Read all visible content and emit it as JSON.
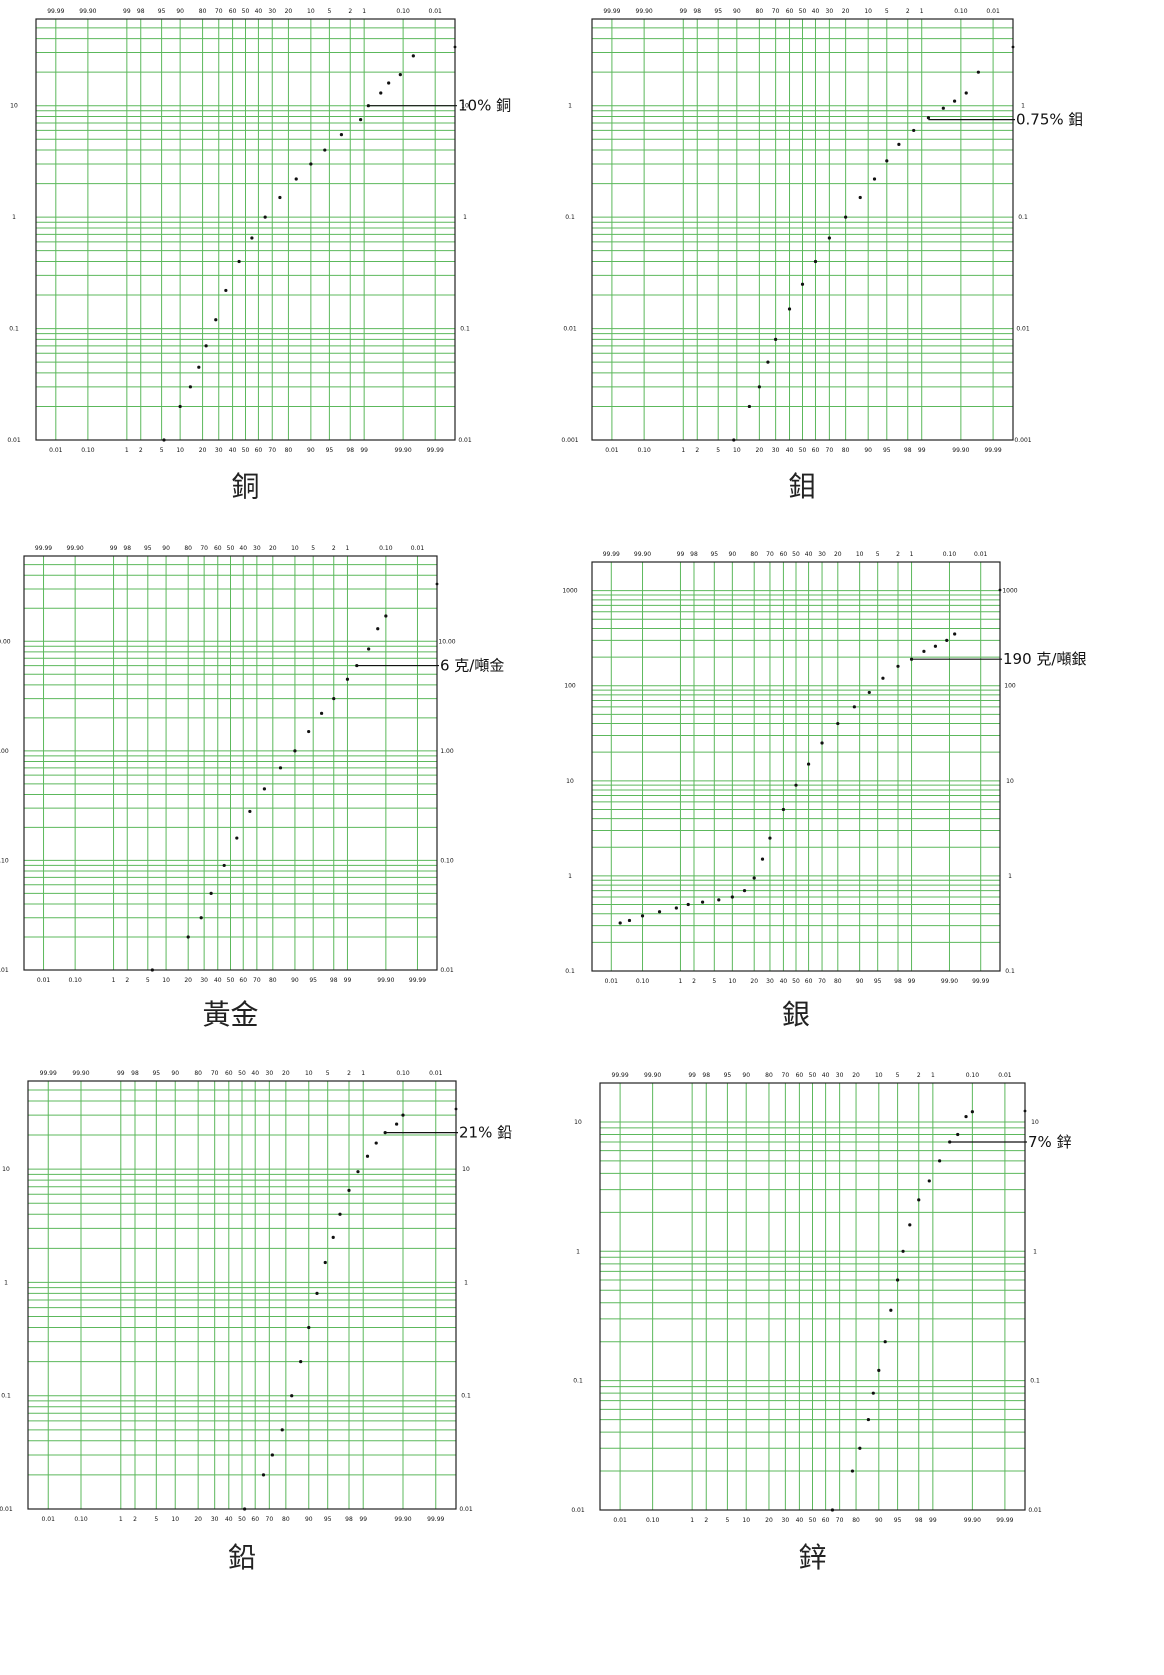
{
  "colors": {
    "grid": "#5cb85c",
    "frame": "#222222",
    "points": "#111111"
  },
  "prob_top_ticks": [
    "99.99",
    "99.90",
    "99",
    "98",
    "95",
    "90",
    "80",
    "70",
    "60",
    "50",
    "40",
    "30",
    "20",
    "10",
    "5",
    "2",
    "1",
    "0.10",
    "0.01"
  ],
  "prob_bottom_ticks": [
    "0.01",
    "0.10",
    "1",
    "2",
    "5",
    "10",
    "20",
    "30",
    "40",
    "50",
    "60",
    "70",
    "80",
    "90",
    "95",
    "98",
    "99",
    "99.90",
    "99.99"
  ],
  "chart_data": [
    {
      "type": "scatter",
      "title": "銅",
      "y_scale": "log",
      "ylim": [
        0.01,
        60
      ],
      "y_ticks": [
        "10",
        "1",
        "0.1",
        "0.01"
      ],
      "annotation": {
        "label": "10% 銅",
        "y": 10
      },
      "x": [
        5.5,
        10,
        14,
        18,
        22,
        28,
        35,
        45,
        55,
        65,
        75,
        84,
        90,
        94,
        97,
        98.8,
        99.2,
        99.6,
        99.75,
        99.88,
        99.95
      ],
      "y": [
        0.01,
        0.02,
        0.03,
        0.045,
        0.07,
        0.12,
        0.22,
        0.4,
        0.65,
        1.0,
        1.5,
        2.2,
        3.0,
        4.0,
        5.5,
        7.5,
        10,
        13,
        16,
        19,
        28
      ]
    },
    {
      "type": "scatter",
      "title": "鉬",
      "y_scale": "log",
      "ylim": [
        0.001,
        6
      ],
      "y_ticks": [
        "1",
        "0.1",
        "0.01",
        "0.001"
      ],
      "annotation": {
        "label": "0.75% 鉬",
        "y": 0.75
      },
      "x": [
        9,
        15,
        20,
        25,
        30,
        40,
        50,
        60,
        70,
        80,
        87,
        92,
        95,
        97,
        98.5,
        99.3,
        99.7,
        99.85,
        99.93,
        99.97
      ],
      "y": [
        0.001,
        0.002,
        0.003,
        0.005,
        0.008,
        0.015,
        0.025,
        0.04,
        0.065,
        0.1,
        0.15,
        0.22,
        0.32,
        0.45,
        0.6,
        0.78,
        0.95,
        1.1,
        1.3,
        2.0
      ]
    },
    {
      "type": "scatter",
      "title": "黃金",
      "y_scale": "log",
      "ylim": [
        0.01,
        60
      ],
      "y_ticks": [
        "10.00",
        "1.00",
        "0.10",
        "0.01"
      ],
      "annotation": {
        "label": "6 克/噸金",
        "y": 6
      },
      "x": [
        6,
        20,
        28,
        35,
        45,
        55,
        65,
        75,
        84,
        90,
        94,
        96.5,
        98,
        99,
        99.4,
        99.7,
        99.83,
        99.9
      ],
      "y": [
        0.01,
        0.02,
        0.03,
        0.05,
        0.09,
        0.16,
        0.28,
        0.45,
        0.7,
        1.0,
        1.5,
        2.2,
        3.0,
        4.5,
        6.0,
        8.5,
        13,
        17
      ]
    },
    {
      "type": "scatter",
      "title": "銀",
      "y_scale": "log",
      "ylim": [
        0.1,
        2000
      ],
      "y_ticks": [
        "1000",
        "100",
        "10",
        "1",
        "0.1"
      ],
      "annotation": {
        "label": "190 克/噸銀",
        "y": 190
      },
      "x": [
        0.02,
        0.04,
        0.1,
        0.3,
        0.8,
        1.5,
        3,
        6,
        10,
        15,
        20,
        25,
        30,
        40,
        50,
        60,
        70,
        80,
        88,
        93,
        96,
        98,
        99,
        99.5,
        99.75,
        99.88,
        99.93
      ],
      "y": [
        0.32,
        0.34,
        0.38,
        0.42,
        0.46,
        0.5,
        0.53,
        0.56,
        0.6,
        0.7,
        0.95,
        1.5,
        2.5,
        5.0,
        9.0,
        15,
        25,
        40,
        60,
        85,
        120,
        160,
        190,
        230,
        260,
        300,
        350
      ]
    },
    {
      "type": "scatter",
      "title": "鉛",
      "y_scale": "log",
      "ylim": [
        0.01,
        60
      ],
      "y_ticks": [
        "10",
        "1",
        "0.1",
        "0.01"
      ],
      "annotation": {
        "label": "21% 鉛",
        "y": 21
      },
      "x": [
        52,
        66,
        72,
        78,
        83,
        87,
        90,
        92.5,
        94.5,
        96,
        97,
        98,
        98.7,
        99.2,
        99.5,
        99.7,
        99.85,
        99.9
      ],
      "y": [
        0.01,
        0.02,
        0.03,
        0.05,
        0.1,
        0.2,
        0.4,
        0.8,
        1.5,
        2.5,
        4.0,
        6.5,
        9.5,
        13,
        17,
        21,
        25,
        30
      ]
    },
    {
      "type": "scatter",
      "title": "鋅",
      "y_scale": "log",
      "ylim": [
        0.01,
        20
      ],
      "y_ticks": [
        "10",
        "1",
        "0.1",
        "0.01"
      ],
      "annotation": {
        "label": "7% 鋅",
        "y": 7
      },
      "x": [
        65,
        78,
        82,
        86,
        88,
        90,
        92,
        93.5,
        95,
        96,
        97,
        98,
        98.8,
        99.3,
        99.6,
        99.75,
        99.85,
        99.9
      ],
      "y": [
        0.01,
        0.02,
        0.03,
        0.05,
        0.08,
        0.12,
        0.2,
        0.35,
        0.6,
        1.0,
        1.6,
        2.5,
        3.5,
        5.0,
        7.0,
        8.0,
        11,
        12
      ]
    }
  ]
}
